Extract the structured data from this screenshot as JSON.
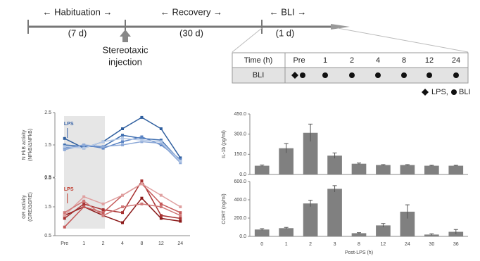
{
  "timeline": {
    "phases": [
      {
        "label": "← Habituation →",
        "duration": "(7 d)"
      },
      {
        "label": "← Recovery →",
        "duration": "(30 d)"
      },
      {
        "label": "← BLI →",
        "duration": "(1 d)"
      }
    ],
    "event": [
      "Stereotaxic",
      "injection"
    ]
  },
  "table": {
    "header": [
      "Time (h)",
      "Pre",
      "1",
      "2",
      "4",
      "8",
      "12",
      "24"
    ],
    "rows": [
      [
        "BLI"
      ]
    ]
  },
  "legend": [
    "LPS,",
    "BLI"
  ],
  "chart_data": [
    {
      "type": "line",
      "ylabel": [
        "N FkB activity",
        "(NFkB/ΔNFkB)"
      ],
      "annotation": "LPS",
      "annotation_color": "#3a64a8",
      "ylim": [
        0.5,
        2.5
      ],
      "yticks": [
        0.5,
        1.5,
        2.5
      ],
      "series": [
        {
          "color": "#2e5e9e",
          "values": [
            1.7,
            1.4,
            1.6,
            2.0,
            2.35,
            2.0,
            1.1
          ]
        },
        {
          "color": "#3f6fb0",
          "values": [
            1.5,
            1.45,
            1.45,
            1.8,
            1.7,
            1.65,
            1.0
          ]
        },
        {
          "color": "#5b84c4",
          "values": [
            1.4,
            1.5,
            1.4,
            1.6,
            1.75,
            1.5,
            1.05
          ]
        },
        {
          "color": "#8eaad8",
          "values": [
            1.35,
            1.5,
            1.45,
            1.5,
            1.6,
            1.55,
            0.95
          ]
        },
        {
          "color": "#b4c8e6",
          "values": [
            1.45,
            1.4,
            1.6,
            1.7,
            1.65,
            1.6,
            1.0
          ]
        }
      ]
    },
    {
      "type": "line",
      "ylabel": [
        "GR activity",
        "(GRE/ΔGRE)"
      ],
      "annotation": "LPS",
      "annotation_color": "#c0392b",
      "categories": [
        "Pre",
        "1",
        "2",
        "4",
        "8",
        "12",
        "24"
      ],
      "ylim": [
        0.5,
        2.5
      ],
      "yticks": [
        0.5,
        1.5,
        2.5
      ],
      "series": [
        {
          "color": "#8b1a1a",
          "values": [
            1.2,
            1.5,
            1.2,
            0.95,
            1.8,
            1.1,
            1.0
          ]
        },
        {
          "color": "#a83232",
          "values": [
            1.1,
            1.6,
            1.4,
            1.3,
            2.4,
            1.2,
            1.1
          ]
        },
        {
          "color": "#c55a5a",
          "values": [
            0.8,
            1.5,
            1.3,
            1.9,
            2.3,
            1.6,
            1.3
          ]
        },
        {
          "color": "#e0a0a0",
          "values": [
            1.2,
            1.85,
            1.6,
            1.9,
            2.3,
            1.9,
            1.5
          ]
        },
        {
          "color": "#d07878",
          "values": [
            1.3,
            1.7,
            1.2,
            1.5,
            1.6,
            1.5,
            1.2
          ]
        }
      ]
    },
    {
      "type": "bar",
      "ylabel": [
        "IL-1b (pg/ml)"
      ],
      "color": "#808080",
      "ylim": [
        0,
        450
      ],
      "yticks": [
        {
          "value": 0,
          "label": "0.0"
        },
        {
          "value": 150,
          "label": "150.0"
        },
        {
          "value": 300,
          "label": "300.0"
        },
        {
          "value": 450,
          "label": "450.0"
        }
      ],
      "values": [
        65,
        195,
        310,
        140,
        80,
        70,
        70,
        65,
        65
      ],
      "errors": [
        5,
        35,
        65,
        20,
        5,
        3,
        3,
        3,
        3
      ]
    },
    {
      "type": "bar",
      "ylabel": [
        "CORT (ng/ml)"
      ],
      "color": "#808080",
      "xlabel": "Post-LPS (h)",
      "categories": [
        "0",
        "1",
        "2",
        "3",
        "8",
        "12",
        "24",
        "30",
        "36"
      ],
      "ylim": [
        0,
        600
      ],
      "yticks": [
        {
          "value": 0,
          "label": "0.0"
        },
        {
          "value": 200,
          "label": "200.0"
        },
        {
          "value": 400,
          "label": "400.0"
        },
        {
          "value": 600,
          "label": "600.0"
        }
      ],
      "values": [
        75,
        90,
        360,
        520,
        35,
        120,
        270,
        20,
        50
      ],
      "errors": [
        10,
        8,
        35,
        35,
        5,
        20,
        75,
        8,
        25
      ]
    }
  ]
}
